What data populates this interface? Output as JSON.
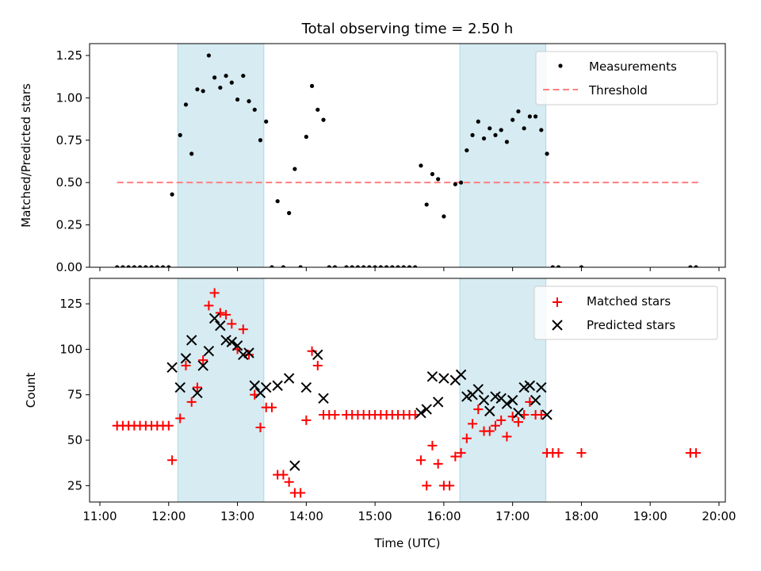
{
  "chart_data": {
    "type": "scatter",
    "title": "Total observing time = 2.50 h",
    "xlabel": "Time (UTC)",
    "x_ticks": [
      "11:00",
      "12:00",
      "13:00",
      "14:00",
      "15:00",
      "16:00",
      "17:00",
      "18:00",
      "19:00",
      "20:00"
    ],
    "shaded_intervals": [
      [
        "12:08",
        "13:23"
      ],
      [
        "16:14",
        "17:29"
      ]
    ],
    "shade_color": "#add8e6",
    "top": {
      "ylabel": "Matched/Predicted stars",
      "ylim": [
        0,
        1.32
      ],
      "y_ticks": [
        "0.00",
        "0.25",
        "0.50",
        "0.75",
        "1.00",
        "1.25"
      ],
      "legend_position": "top-right",
      "threshold": {
        "name": "Threshold",
        "value": 0.5,
        "x_range": [
          "11:15",
          "19:45"
        ],
        "color": "#ff7f7f"
      },
      "measurements": {
        "name": "Measurements",
        "color": "#000000",
        "points": [
          [
            "11:15",
            0
          ],
          [
            "11:20",
            0
          ],
          [
            "11:25",
            0
          ],
          [
            "11:30",
            0
          ],
          [
            "11:35",
            0
          ],
          [
            "11:40",
            0
          ],
          [
            "11:45",
            0
          ],
          [
            "11:50",
            0
          ],
          [
            "11:55",
            0
          ],
          [
            "12:00",
            0
          ],
          [
            "12:03",
            0.43
          ],
          [
            "12:10",
            0.78
          ],
          [
            "12:15",
            0.96
          ],
          [
            "12:20",
            0.67
          ],
          [
            "12:25",
            1.05
          ],
          [
            "12:30",
            1.04
          ],
          [
            "12:35",
            1.25
          ],
          [
            "12:40",
            1.12
          ],
          [
            "12:45",
            1.06
          ],
          [
            "12:50",
            1.13
          ],
          [
            "12:55",
            1.09
          ],
          [
            "13:00",
            0.99
          ],
          [
            "13:05",
            1.13
          ],
          [
            "13:10",
            0.98
          ],
          [
            "13:15",
            0.93
          ],
          [
            "13:20",
            0.75
          ],
          [
            "13:25",
            0.86
          ],
          [
            "13:30",
            0
          ],
          [
            "13:35",
            0.39
          ],
          [
            "13:40",
            0
          ],
          [
            "13:45",
            0.32
          ],
          [
            "13:50",
            0.58
          ],
          [
            "13:55",
            0
          ],
          [
            "14:00",
            0.77
          ],
          [
            "14:05",
            1.07
          ],
          [
            "14:10",
            0.93
          ],
          [
            "14:15",
            0.87
          ],
          [
            "14:20",
            0
          ],
          [
            "14:25",
            0
          ],
          [
            "14:35",
            0
          ],
          [
            "14:40",
            0
          ],
          [
            "14:45",
            0
          ],
          [
            "14:50",
            0
          ],
          [
            "14:55",
            0
          ],
          [
            "15:00",
            0
          ],
          [
            "15:05",
            0
          ],
          [
            "15:10",
            0
          ],
          [
            "15:15",
            0
          ],
          [
            "15:20",
            0
          ],
          [
            "15:25",
            0
          ],
          [
            "15:30",
            0
          ],
          [
            "15:35",
            0
          ],
          [
            "15:40",
            0.6
          ],
          [
            "15:45",
            0.37
          ],
          [
            "15:50",
            0.55
          ],
          [
            "15:55",
            0.52
          ],
          [
            "16:00",
            0.3
          ],
          [
            "16:10",
            0.49
          ],
          [
            "16:15",
            0.5
          ],
          [
            "16:20",
            0.69
          ],
          [
            "16:25",
            0.78
          ],
          [
            "16:30",
            0.86
          ],
          [
            "16:35",
            0.76
          ],
          [
            "16:40",
            0.82
          ],
          [
            "16:45",
            0.78
          ],
          [
            "16:50",
            0.81
          ],
          [
            "16:55",
            0.74
          ],
          [
            "17:00",
            0.87
          ],
          [
            "17:05",
            0.92
          ],
          [
            "17:10",
            0.82
          ],
          [
            "17:15",
            0.89
          ],
          [
            "17:20",
            0.89
          ],
          [
            "17:25",
            0.81
          ],
          [
            "17:30",
            0.67
          ],
          [
            "17:35",
            0
          ],
          [
            "17:40",
            0
          ],
          [
            "18:00",
            0
          ],
          [
            "19:35",
            0
          ],
          [
            "19:40",
            0
          ]
        ]
      }
    },
    "bottom": {
      "ylabel": "Count",
      "ylim": [
        16,
        139
      ],
      "y_ticks": [
        25,
        50,
        75,
        100,
        125
      ],
      "legend_position": "top-right",
      "series": [
        {
          "name": "Matched stars",
          "marker": "plus",
          "color": "#ff0000",
          "points": [
            [
              "11:15",
              58
            ],
            [
              "11:20",
              58
            ],
            [
              "11:25",
              58
            ],
            [
              "11:30",
              58
            ],
            [
              "11:35",
              58
            ],
            [
              "11:40",
              58
            ],
            [
              "11:45",
              58
            ],
            [
              "11:50",
              58
            ],
            [
              "11:55",
              58
            ],
            [
              "12:00",
              58
            ],
            [
              "12:03",
              39
            ],
            [
              "12:10",
              62
            ],
            [
              "12:15",
              91
            ],
            [
              "12:20",
              71
            ],
            [
              "12:25",
              79
            ],
            [
              "12:30",
              94
            ],
            [
              "12:35",
              124
            ],
            [
              "12:40",
              131
            ],
            [
              "12:45",
              120
            ],
            [
              "12:50",
              119
            ],
            [
              "12:55",
              114
            ],
            [
              "13:00",
              100
            ],
            [
              "13:05",
              111
            ],
            [
              "13:10",
              97
            ],
            [
              "13:15",
              75
            ],
            [
              "13:20",
              57
            ],
            [
              "13:25",
              68
            ],
            [
              "13:30",
              68
            ],
            [
              "13:35",
              31
            ],
            [
              "13:40",
              31
            ],
            [
              "13:45",
              27
            ],
            [
              "13:50",
              21
            ],
            [
              "13:55",
              21
            ],
            [
              "14:00",
              61
            ],
            [
              "14:05",
              99
            ],
            [
              "14:10",
              91
            ],
            [
              "14:15",
              64
            ],
            [
              "14:20",
              64
            ],
            [
              "14:25",
              64
            ],
            [
              "14:35",
              64
            ],
            [
              "14:40",
              64
            ],
            [
              "14:45",
              64
            ],
            [
              "14:50",
              64
            ],
            [
              "14:55",
              64
            ],
            [
              "15:00",
              64
            ],
            [
              "15:05",
              64
            ],
            [
              "15:10",
              64
            ],
            [
              "15:15",
              64
            ],
            [
              "15:20",
              64
            ],
            [
              "15:25",
              64
            ],
            [
              "15:30",
              64
            ],
            [
              "15:35",
              64
            ],
            [
              "15:40",
              39
            ],
            [
              "15:45",
              25
            ],
            [
              "15:50",
              47
            ],
            [
              "15:55",
              37
            ],
            [
              "16:00",
              25
            ],
            [
              "16:05",
              25
            ],
            [
              "16:10",
              41
            ],
            [
              "16:15",
              43
            ],
            [
              "16:20",
              51
            ],
            [
              "16:25",
              59
            ],
            [
              "16:30",
              67
            ],
            [
              "16:35",
              55
            ],
            [
              "16:40",
              55
            ],
            [
              "16:45",
              58
            ],
            [
              "16:50",
              61
            ],
            [
              "16:55",
              52
            ],
            [
              "17:00",
              63
            ],
            [
              "17:05",
              60
            ],
            [
              "17:10",
              64
            ],
            [
              "17:15",
              71
            ],
            [
              "17:20",
              64
            ],
            [
              "17:25",
              64
            ],
            [
              "17:30",
              43
            ],
            [
              "17:35",
              43
            ],
            [
              "17:40",
              43
            ],
            [
              "18:00",
              43
            ],
            [
              "19:35",
              43
            ],
            [
              "19:40",
              43
            ]
          ]
        },
        {
          "name": "Predicted stars",
          "marker": "x",
          "color": "#000000",
          "points": [
            [
              "12:03",
              90
            ],
            [
              "12:10",
              79
            ],
            [
              "12:15",
              95
            ],
            [
              "12:20",
              105
            ],
            [
              "12:25",
              76
            ],
            [
              "12:30",
              91
            ],
            [
              "12:35",
              99
            ],
            [
              "12:40",
              117
            ],
            [
              "12:45",
              113
            ],
            [
              "12:50",
              105
            ],
            [
              "12:55",
              104
            ],
            [
              "13:00",
              102
            ],
            [
              "13:05",
              97
            ],
            [
              "13:10",
              98
            ],
            [
              "13:15",
              80
            ],
            [
              "13:20",
              76
            ],
            [
              "13:25",
              79
            ],
            [
              "13:35",
              80
            ],
            [
              "13:45",
              84
            ],
            [
              "13:50",
              36
            ],
            [
              "14:00",
              79
            ],
            [
              "14:10",
              97
            ],
            [
              "14:15",
              73
            ],
            [
              "15:40",
              65
            ],
            [
              "15:45",
              67
            ],
            [
              "15:50",
              85
            ],
            [
              "15:55",
              71
            ],
            [
              "16:00",
              84
            ],
            [
              "16:10",
              83
            ],
            [
              "16:15",
              86
            ],
            [
              "16:20",
              74
            ],
            [
              "16:25",
              75
            ],
            [
              "16:30",
              78
            ],
            [
              "16:35",
              72
            ],
            [
              "16:40",
              66
            ],
            [
              "16:45",
              74
            ],
            [
              "16:50",
              73
            ],
            [
              "16:55",
              70
            ],
            [
              "17:00",
              72
            ],
            [
              "17:05",
              65
            ],
            [
              "17:10",
              79
            ],
            [
              "17:15",
              80
            ],
            [
              "17:20",
              72
            ],
            [
              "17:25",
              79
            ],
            [
              "17:30",
              64
            ]
          ]
        }
      ]
    }
  }
}
